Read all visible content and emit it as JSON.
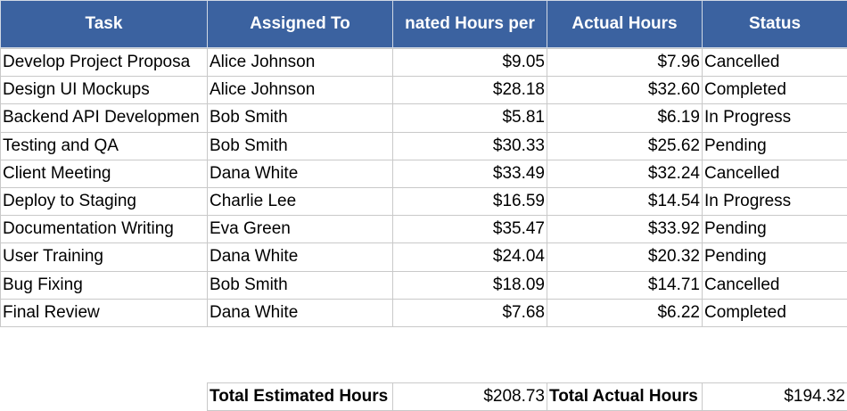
{
  "table": {
    "header": [
      "Task",
      "Assigned To",
      "nated Hours per",
      "Actual Hours",
      "Status"
    ],
    "rows": [
      [
        "Develop Project Proposa",
        "Alice Johnson",
        "$9.05",
        "$7.96",
        "Cancelled"
      ],
      [
        "Design UI Mockups",
        "Alice Johnson",
        "$28.18",
        "$32.60",
        "Completed"
      ],
      [
        "Backend API Developmen",
        "Bob Smith",
        "$5.81",
        "$6.19",
        "In Progress"
      ],
      [
        "Testing and QA",
        "Bob Smith",
        "$30.33",
        "$25.62",
        "Pending"
      ],
      [
        "Client Meeting",
        "Dana White",
        "$33.49",
        "$32.24",
        "Cancelled"
      ],
      [
        "Deploy to Staging",
        "Charlie Lee",
        "$16.59",
        "$14.54",
        "In Progress"
      ],
      [
        "Documentation Writing",
        "Eva Green",
        "$35.47",
        "$33.92",
        "Pending"
      ],
      [
        "User Training",
        "Dana White",
        "$24.04",
        "$20.32",
        "Pending"
      ],
      [
        "Bug Fixing",
        "Bob Smith",
        "$18.09",
        "$14.71",
        "Cancelled"
      ],
      [
        "Final Review",
        "Dana White",
        "$7.68",
        "$6.22",
        "Completed"
      ]
    ]
  },
  "totals": [
    "Total Estimated Hours",
    "$208.73",
    "Total Actual Hours",
    "$194.32"
  ]
}
